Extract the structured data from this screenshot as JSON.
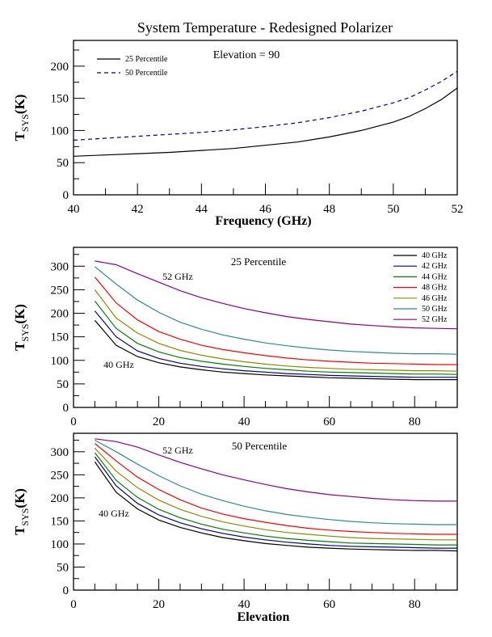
{
  "figure_title": "System Temperature - Redesigned Polarizer",
  "chart_data": [
    {
      "type": "line",
      "id": "freq",
      "title": "System Temperature - Redesigned Polarizer",
      "annotation": "Elevation = 90",
      "xlabel": "Frequency (GHz)",
      "ylabel": "T_SYS(K)",
      "xlim": [
        40,
        52
      ],
      "ylim": [
        0,
        240
      ],
      "xticks": [
        40,
        42,
        44,
        46,
        48,
        50,
        52
      ],
      "yticks": [
        0,
        50,
        100,
        150,
        200
      ],
      "x_minor_step": 1,
      "y_minor_step": 25,
      "legend_position": "top-left",
      "grid": false,
      "x": [
        40,
        41,
        42,
        43,
        44,
        45,
        46,
        47,
        48,
        49,
        50,
        50.5,
        51,
        51.5,
        52
      ],
      "series": [
        {
          "name": "25 Percentile",
          "color": "#000000",
          "dash": "solid",
          "values": [
            60,
            62,
            64,
            66,
            69,
            72,
            77,
            82,
            90,
            100,
            113,
            122,
            134,
            148,
            166
          ]
        },
        {
          "name": "50 Percentile",
          "color": "#00008b",
          "dash": "dashed",
          "values": [
            85,
            88,
            91,
            94,
            97,
            101,
            106,
            112,
            120,
            130,
            143,
            151,
            163,
            176,
            192
          ]
        }
      ]
    },
    {
      "type": "line",
      "id": "p25",
      "annotation": "25 Percentile",
      "label_high": "52 GHz",
      "label_low": "40 GHz",
      "xlabel": "",
      "ylabel": "T_SYS(K)",
      "xlim": [
        0,
        90
      ],
      "ylim": [
        0,
        340
      ],
      "xticks": [
        0,
        20,
        40,
        60,
        80
      ],
      "yticks": [
        0,
        50,
        100,
        150,
        200,
        250,
        300
      ],
      "x_minor_step": 5,
      "y_minor_step": 25,
      "legend_position": "top-right",
      "grid": false,
      "x": [
        5,
        10,
        15,
        20,
        25,
        30,
        35,
        40,
        45,
        50,
        55,
        60,
        65,
        70,
        75,
        80,
        85,
        90
      ],
      "series": [
        {
          "name": "40 GHz",
          "color": "#000000",
          "values": [
            185,
            132,
            108,
            95,
            86,
            80,
            75,
            72,
            69,
            67,
            65,
            63,
            62,
            61,
            60,
            59,
            59,
            59
          ]
        },
        {
          "name": "42 GHz",
          "color": "#00008b",
          "values": [
            205,
            150,
            120,
            104,
            94,
            87,
            82,
            78,
            75,
            72,
            70,
            68,
            67,
            66,
            65,
            64,
            64,
            64
          ]
        },
        {
          "name": "44 GHz",
          "color": "#008000",
          "values": [
            226,
            168,
            136,
            118,
            106,
            98,
            92,
            87,
            83,
            80,
            77,
            75,
            74,
            73,
            72,
            71,
            71,
            70
          ]
        },
        {
          "name": "48 GHz",
          "color": "#ff0000",
          "values": [
            277,
            222,
            186,
            161,
            145,
            132,
            123,
            116,
            110,
            105,
            101,
            98,
            96,
            94,
            93,
            92,
            91,
            91
          ]
        },
        {
          "name": "46 GHz",
          "color": "#8b8b00",
          "values": [
            250,
            190,
            158,
            136,
            121,
            111,
            103,
            97,
            92,
            88,
            85,
            83,
            81,
            80,
            79,
            78,
            78,
            77
          ]
        },
        {
          "name": "50 GHz",
          "color": "#2e8b8b",
          "values": [
            299,
            262,
            228,
            202,
            181,
            166,
            154,
            145,
            137,
            131,
            126,
            122,
            119,
            117,
            115,
            114,
            114,
            113
          ]
        },
        {
          "name": "52 GHz",
          "color": "#8b008b",
          "values": [
            311,
            303,
            284,
            266,
            248,
            233,
            221,
            210,
            201,
            193,
            187,
            182,
            177,
            174,
            171,
            169,
            168,
            167
          ]
        }
      ]
    },
    {
      "type": "line",
      "id": "p50",
      "annotation": "50 Percentile",
      "label_high": "52 GHz",
      "label_low": "40 GHz",
      "xlabel": "Elevation",
      "ylabel": "T_SYS(K)",
      "xlim": [
        0,
        90
      ],
      "ylim": [
        0,
        340
      ],
      "xticks": [
        0,
        20,
        40,
        60,
        80
      ],
      "yticks": [
        0,
        50,
        100,
        150,
        200,
        250,
        300
      ],
      "x_minor_step": 5,
      "y_minor_step": 25,
      "grid": false,
      "x": [
        5,
        10,
        15,
        20,
        25,
        30,
        35,
        40,
        45,
        50,
        55,
        60,
        65,
        70,
        75,
        80,
        85,
        90
      ],
      "series": [
        {
          "name": "40 GHz",
          "color": "#000000",
          "values": [
            278,
            212,
            176,
            152,
            136,
            124,
            114,
            107,
            101,
            97,
            93,
            91,
            89,
            88,
            87,
            86,
            86,
            85
          ]
        },
        {
          "name": "42 GHz",
          "color": "#00008b",
          "values": [
            289,
            226,
            188,
            163,
            146,
            133,
            123,
            115,
            109,
            104,
            100,
            97,
            95,
            94,
            93,
            92,
            91,
            91
          ]
        },
        {
          "name": "44 GHz",
          "color": "#008000",
          "values": [
            298,
            238,
            201,
            175,
            157,
            143,
            132,
            124,
            117,
            112,
            108,
            105,
            102,
            101,
            100,
            99,
            98,
            98
          ]
        },
        {
          "name": "48 GHz",
          "color": "#ff0000",
          "values": [
            318,
            280,
            245,
            218,
            196,
            178,
            165,
            155,
            147,
            140,
            134,
            130,
            127,
            125,
            123,
            122,
            121,
            121
          ]
        },
        {
          "name": "46 GHz",
          "color": "#8b8b00",
          "values": [
            308,
            258,
            222,
            195,
            175,
            160,
            148,
            139,
            131,
            125,
            121,
            117,
            114,
            112,
            111,
            110,
            109,
            109
          ]
        },
        {
          "name": "50 GHz",
          "color": "#2e8b8b",
          "values": [
            325,
            300,
            273,
            248,
            226,
            208,
            194,
            182,
            172,
            164,
            158,
            153,
            149,
            146,
            144,
            143,
            142,
            142
          ]
        },
        {
          "name": "52 GHz",
          "color": "#8b008b",
          "values": [
            328,
            322,
            310,
            293,
            277,
            263,
            250,
            239,
            229,
            220,
            213,
            207,
            203,
            199,
            196,
            194,
            193,
            193
          ]
        }
      ]
    }
  ]
}
